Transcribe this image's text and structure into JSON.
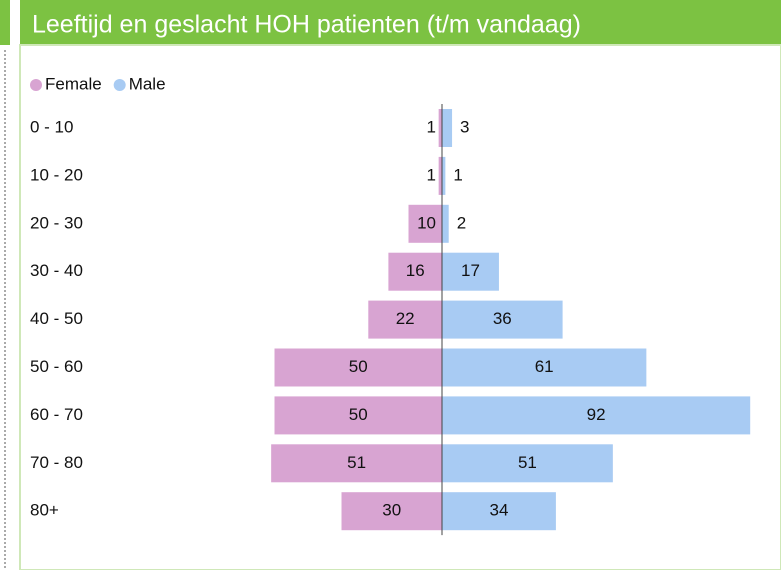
{
  "chart_data": {
    "type": "pyramid",
    "title": "Leeftijd en geslacht HOH patienten (t/m vandaag)",
    "categories": [
      "0 - 10",
      "10 - 20",
      "20 - 30",
      "30 - 40",
      "40 - 50",
      "50 - 60",
      "60 - 70",
      "70 - 80",
      "80+"
    ],
    "series": [
      {
        "name": "Female",
        "color": "#d8a4d2",
        "values": [
          1,
          1,
          10,
          16,
          22,
          50,
          50,
          51,
          30
        ]
      },
      {
        "name": "Male",
        "color": "#a8cbf3",
        "values": [
          3,
          1,
          2,
          17,
          36,
          61,
          92,
          51,
          34
        ]
      }
    ],
    "xlim": [
      -100,
      100
    ],
    "legend": "top-left"
  }
}
